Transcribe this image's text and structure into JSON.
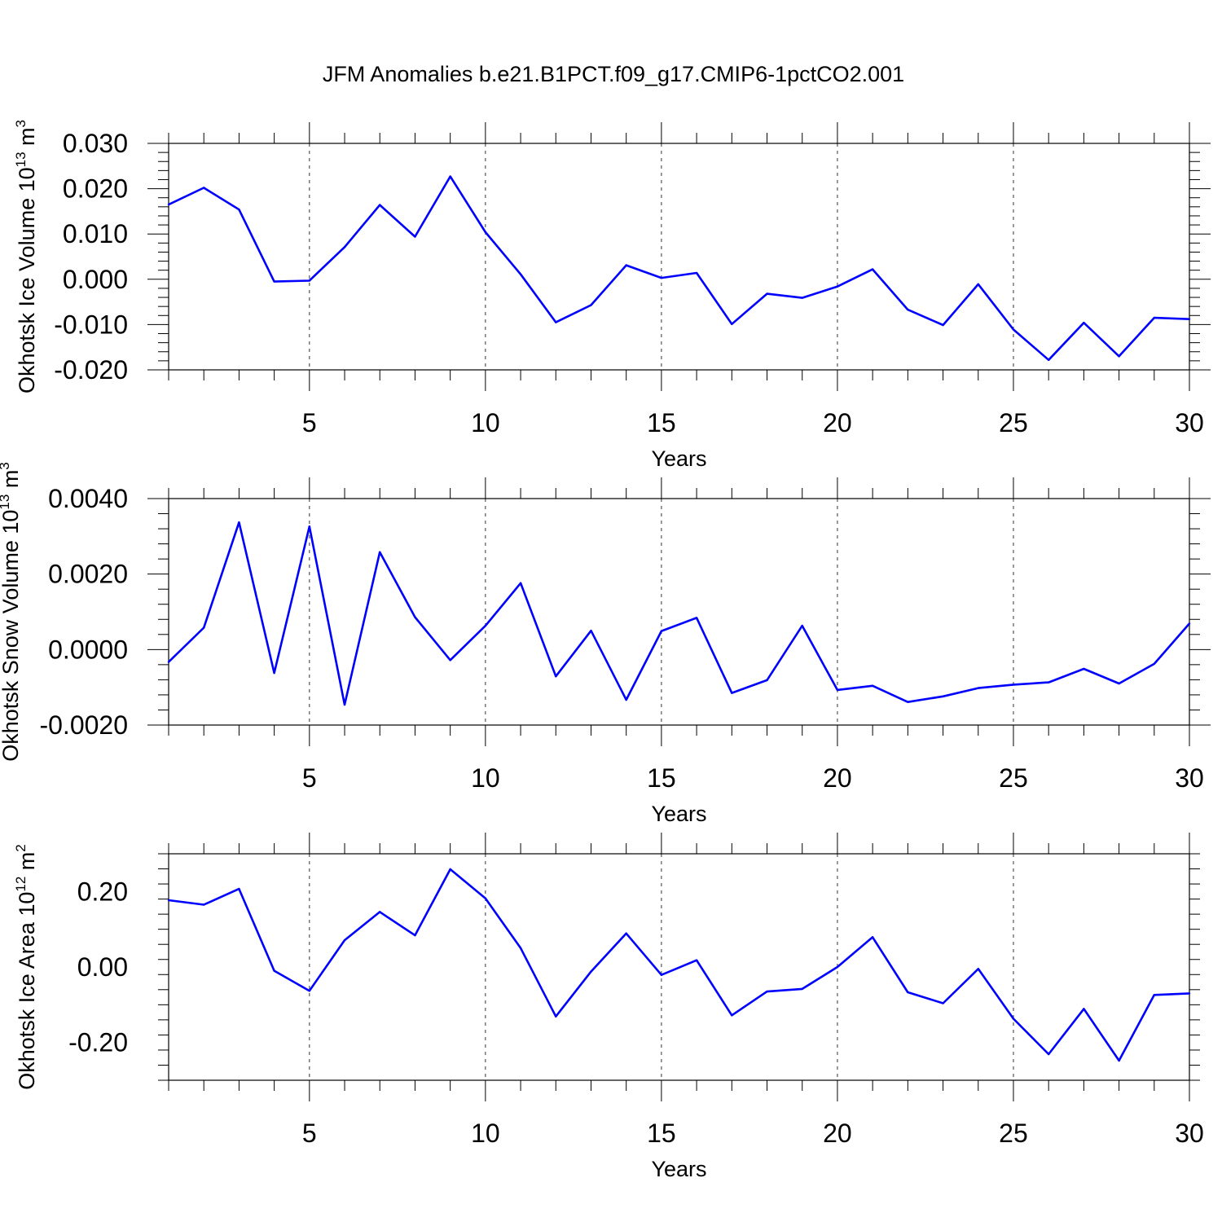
{
  "title": "JFM Anomalies b.e21.B1PCT.f09_g17.CMIP6-1pctCO2.001",
  "colors": {
    "line": "#0000ff",
    "axis": "#000000",
    "grid": "#000000",
    "background": "#ffffff"
  },
  "chart_data": [
    {
      "type": "line",
      "xlabel": "Years",
      "ylabel": {
        "text": "Okhotsk Ice Volume 10",
        "exp": "13",
        "unit": " m",
        "unit_exp": "3"
      },
      "xlim": [
        1,
        30
      ],
      "ylim": [
        -0.02,
        0.03
      ],
      "xticks": [
        5,
        10,
        15,
        20,
        25,
        30
      ],
      "xtick_labels": [
        "5",
        "10",
        "15",
        "20",
        "25",
        "30"
      ],
      "yticks": [
        -0.02,
        -0.01,
        0.0,
        0.01,
        0.02,
        0.03
      ],
      "ytick_labels": [
        "-0.020",
        "-0.010",
        "0.000",
        "0.010",
        "0.020",
        "0.030"
      ],
      "vgrid": [
        5,
        10,
        15,
        20,
        25
      ],
      "grid_style": "dashed vertical",
      "x": [
        1,
        2,
        3,
        4,
        5,
        6,
        7,
        8,
        9,
        10,
        11,
        12,
        13,
        14,
        15,
        16,
        17,
        18,
        19,
        20,
        21,
        22,
        23,
        24,
        25,
        26,
        27,
        28,
        29,
        30
      ],
      "y": [
        0.0165,
        0.0202,
        0.0154,
        -0.0005,
        -0.0003,
        0.0071,
        0.0164,
        0.0094,
        0.0227,
        0.0104,
        0.0011,
        -0.0095,
        -0.0057,
        0.0031,
        0.0003,
        0.0014,
        -0.0099,
        -0.0032,
        -0.0041,
        -0.0016,
        0.0022,
        -0.0067,
        -0.0101,
        -0.0011,
        -0.0111,
        -0.0178,
        -0.0096,
        -0.017,
        -0.0085,
        -0.0088
      ]
    },
    {
      "type": "line",
      "xlabel": "Years",
      "ylabel": {
        "text": "Okhotsk Snow Volume 10",
        "exp": "13",
        "unit": " m",
        "unit_exp": "3"
      },
      "xlim": [
        1,
        30
      ],
      "ylim": [
        -0.002,
        0.004
      ],
      "xticks": [
        5,
        10,
        15,
        20,
        25,
        30
      ],
      "xtick_labels": [
        "5",
        "10",
        "15",
        "20",
        "25",
        "30"
      ],
      "yticks": [
        -0.002,
        0.0,
        0.002,
        0.004
      ],
      "ytick_labels": [
        "-0.0020",
        "0.0000",
        "0.0020",
        "0.0040"
      ],
      "vgrid": [
        5,
        10,
        15,
        20,
        25
      ],
      "grid_style": "dashed vertical",
      "x": [
        1,
        2,
        3,
        4,
        5,
        6,
        7,
        8,
        9,
        10,
        11,
        12,
        13,
        14,
        15,
        16,
        17,
        18,
        19,
        20,
        21,
        22,
        23,
        24,
        25,
        26,
        27,
        28,
        29,
        30
      ],
      "y": [
        -0.00033,
        0.00058,
        0.00337,
        -0.00062,
        0.00326,
        -0.00146,
        0.00258,
        0.00086,
        -0.00028,
        0.00063,
        0.00176,
        -0.00071,
        0.0005,
        -0.00133,
        0.00049,
        0.00084,
        -0.00115,
        -0.00081,
        0.00063,
        -0.00107,
        -0.00096,
        -0.00139,
        -0.00124,
        -0.00102,
        -0.00093,
        -0.00087,
        -0.00051,
        -0.0009,
        -0.00038,
        0.00069
      ]
    },
    {
      "type": "line",
      "xlabel": "Years",
      "ylabel": {
        "text": "Okhotsk Ice Area 10",
        "exp": "12",
        "unit": " m",
        "unit_exp": "2"
      },
      "xlim": [
        1,
        30
      ],
      "ylim": [
        -0.3,
        0.3
      ],
      "xticks": [
        5,
        10,
        15,
        20,
        25,
        30
      ],
      "xtick_labels": [
        "5",
        "10",
        "15",
        "20",
        "25",
        "30"
      ],
      "yticks": [
        -0.2,
        0.0,
        0.2
      ],
      "ytick_labels": [
        "-0.20",
        "0.00",
        "0.20"
      ],
      "vgrid": [
        5,
        10,
        15,
        20,
        25
      ],
      "grid_style": "dashed vertical",
      "x": [
        1,
        2,
        3,
        4,
        5,
        6,
        7,
        8,
        9,
        10,
        11,
        12,
        13,
        14,
        15,
        16,
        17,
        18,
        19,
        20,
        21,
        22,
        23,
        24,
        25,
        26,
        27,
        28,
        29,
        30
      ],
      "y": [
        0.177,
        0.165,
        0.207,
        -0.01,
        -0.063,
        0.071,
        0.146,
        0.084,
        0.259,
        0.182,
        0.05,
        -0.131,
        -0.012,
        0.089,
        -0.021,
        0.018,
        -0.128,
        -0.065,
        -0.058,
        0.0,
        0.079,
        -0.067,
        -0.096,
        -0.005,
        -0.137,
        -0.231,
        -0.111,
        -0.248,
        -0.074,
        -0.07
      ]
    }
  ]
}
